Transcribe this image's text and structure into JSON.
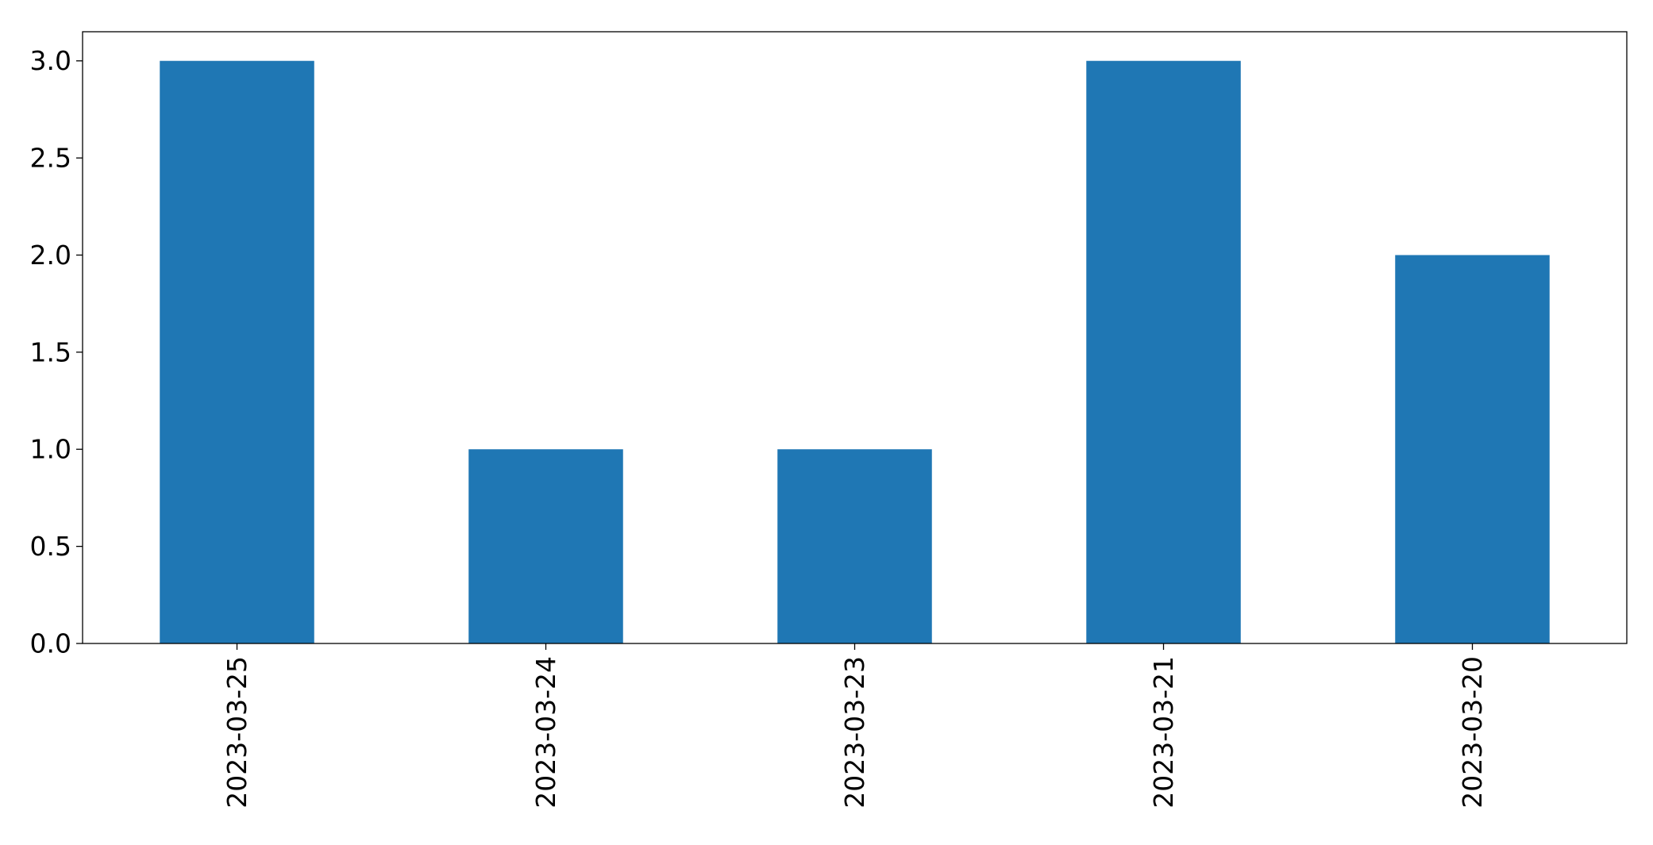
{
  "chart_data": {
    "type": "bar",
    "title": "",
    "xlabel": "",
    "ylabel": "",
    "categories": [
      "2023-03-25",
      "2023-03-24",
      "2023-03-23",
      "2023-03-21",
      "2023-03-20"
    ],
    "values": [
      3,
      1,
      1,
      3,
      2
    ],
    "ylim": [
      0,
      3.15
    ],
    "yticks": [
      0.0,
      0.5,
      1.0,
      1.5,
      2.0,
      2.5,
      3.0
    ],
    "ytick_labels": [
      "0.0",
      "0.5",
      "1.0",
      "1.5",
      "2.0",
      "2.5",
      "3.0"
    ],
    "xtick_rotation": "vertical",
    "grid": false,
    "legend": "none",
    "bar_color": "#1f77b4",
    "axis_color": "#000000"
  }
}
